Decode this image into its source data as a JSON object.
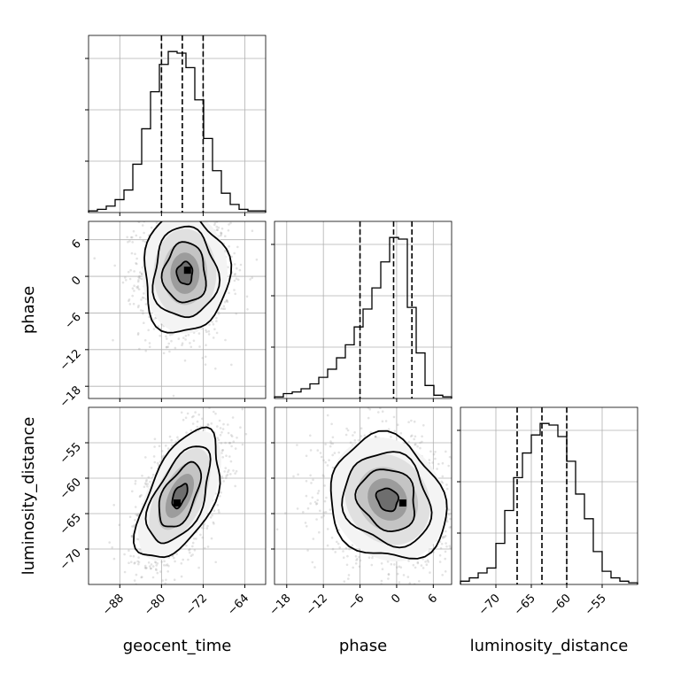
{
  "chart_data": {
    "type": "corner",
    "parameters": [
      {
        "key": "geocent_time",
        "label": "geocent_time",
        "range": [
          -94,
          -60
        ],
        "ticks": [
          -88,
          -80,
          -72,
          -64
        ],
        "quantiles": [
          -80,
          -76,
          -72
        ],
        "hist_edges": [
          -94,
          -92.3,
          -90.6,
          -88.9,
          -87.2,
          -85.5,
          -83.8,
          -82.1,
          -80.4,
          -78.7,
          -77,
          -75.3,
          -73.6,
          -71.9,
          -70.2,
          -68.5,
          -66.8,
          -65.1,
          -63.4,
          -61.7,
          -60
        ],
        "hist_counts": [
          0.01,
          0.02,
          0.04,
          0.08,
          0.14,
          0.3,
          0.52,
          0.75,
          0.92,
          1.0,
          0.99,
          0.9,
          0.7,
          0.46,
          0.26,
          0.12,
          0.05,
          0.02,
          0.01,
          0.01
        ]
      },
      {
        "key": "phase",
        "label": "phase",
        "range": [
          -20,
          9
        ],
        "ticks": [
          -18,
          -12,
          -6,
          0,
          6
        ],
        "quantiles": [
          -6,
          -0.5,
          2.5
        ],
        "hist_edges": [
          -20,
          -18.55,
          -17.1,
          -15.65,
          -14.2,
          -12.75,
          -11.3,
          -9.85,
          -8.4,
          -6.95,
          -5.5,
          -4.05,
          -2.6,
          -1.15,
          0.3,
          1.75,
          3.2,
          4.65,
          6.1,
          7.55,
          9
        ],
        "hist_counts": [
          0.01,
          0.03,
          0.04,
          0.06,
          0.09,
          0.13,
          0.18,
          0.25,
          0.33,
          0.44,
          0.55,
          0.68,
          0.84,
          0.99,
          0.98,
          0.56,
          0.28,
          0.08,
          0.02,
          0.01
        ]
      },
      {
        "key": "luminosity_distance",
        "label": "luminosity_distance",
        "range": [
          -75,
          -50
        ],
        "ticks": [
          -70,
          -65,
          -60,
          -55
        ],
        "quantiles": [
          -67,
          -63.5,
          -60
        ],
        "hist_edges": [
          -75,
          -73.75,
          -72.5,
          -71.25,
          -70,
          -68.75,
          -67.5,
          -66.25,
          -65,
          -63.75,
          -62.5,
          -61.25,
          -60,
          -58.75,
          -57.5,
          -56.25,
          -55,
          -53.75,
          -52.5,
          -51.25,
          -50
        ],
        "hist_counts": [
          0.02,
          0.04,
          0.07,
          0.1,
          0.25,
          0.45,
          0.65,
          0.8,
          0.91,
          0.98,
          0.97,
          0.9,
          0.75,
          0.55,
          0.4,
          0.2,
          0.08,
          0.04,
          0.02,
          0.01
        ]
      }
    ],
    "pairs": [
      {
        "x": "geocent_time",
        "y": "phase",
        "center": [
          -75.5,
          0.5
        ],
        "sigma": [
          4.3,
          5.2
        ],
        "rho": 0.0,
        "mode": [
          -75,
          1
        ]
      },
      {
        "x": "geocent_time",
        "y": "luminosity_distance",
        "center": [
          -76.5,
          -62.5
        ],
        "sigma": [
          4.2,
          4.8
        ],
        "rho": 0.55,
        "mode": [
          -77,
          -63.5
        ]
      },
      {
        "x": "phase",
        "y": "luminosity_distance",
        "center": [
          -1.5,
          -63.0
        ],
        "sigma": [
          5.0,
          4.6
        ],
        "rho": -0.15,
        "mode": [
          1,
          -63.5
        ]
      }
    ],
    "contour_levels_sigma": [
      0.5,
      1.0,
      1.5,
      2.0
    ],
    "grid": true
  }
}
